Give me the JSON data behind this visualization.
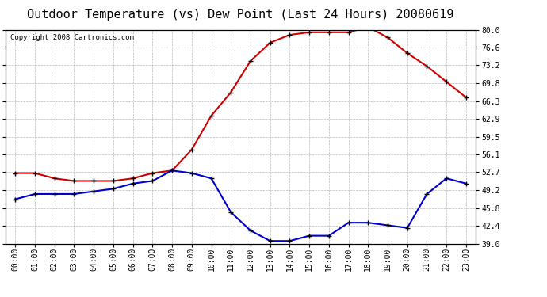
{
  "title": "Outdoor Temperature (vs) Dew Point (Last 24 Hours) 20080619",
  "copyright": "Copyright 2008 Cartronics.com",
  "hours": [
    "00:00",
    "01:00",
    "02:00",
    "03:00",
    "04:00",
    "05:00",
    "06:00",
    "07:00",
    "08:00",
    "09:00",
    "10:00",
    "11:00",
    "12:00",
    "13:00",
    "14:00",
    "15:00",
    "16:00",
    "17:00",
    "18:00",
    "19:00",
    "20:00",
    "21:00",
    "22:00",
    "23:00"
  ],
  "temp": [
    52.5,
    52.5,
    51.5,
    51.0,
    51.0,
    51.0,
    51.5,
    52.5,
    53.0,
    57.0,
    63.5,
    68.0,
    74.0,
    77.5,
    79.0,
    79.5,
    79.5,
    79.5,
    80.5,
    78.5,
    75.5,
    73.0,
    70.0,
    67.0
  ],
  "dew": [
    47.5,
    48.5,
    48.5,
    48.5,
    49.0,
    49.5,
    50.5,
    51.0,
    53.0,
    52.5,
    51.5,
    45.0,
    41.5,
    39.5,
    39.5,
    40.5,
    40.5,
    43.0,
    43.0,
    42.5,
    42.0,
    48.5,
    51.5,
    50.5
  ],
  "temp_color": "#cc0000",
  "dew_color": "#0000cc",
  "bg_color": "#ffffff",
  "grid_color": "#bbbbbb",
  "ylim": [
    39.0,
    80.0
  ],
  "yticks": [
    39.0,
    42.4,
    45.8,
    49.2,
    52.7,
    56.1,
    59.5,
    62.9,
    66.3,
    69.8,
    73.2,
    76.6,
    80.0
  ],
  "ytick_labels": [
    "39.0",
    "42.4",
    "45.8",
    "49.2",
    "52.7",
    "56.1",
    "59.5",
    "62.9",
    "66.3",
    "69.8",
    "73.2",
    "76.6",
    "80.0"
  ],
  "title_fontsize": 11,
  "copyright_fontsize": 6.5,
  "tick_fontsize": 7,
  "line_width": 1.5,
  "marker": "+",
  "marker_size": 5,
  "marker_edge_width": 1.0
}
